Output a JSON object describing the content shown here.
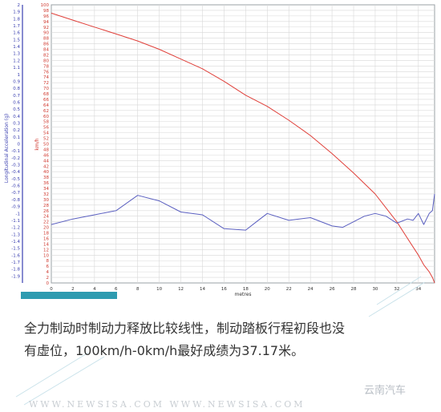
{
  "chart_data": {
    "type": "line",
    "title": "",
    "xlabel": "metres",
    "x_ticks": [
      0,
      2,
      4,
      6,
      8,
      10,
      12,
      14,
      16,
      18,
      20,
      22,
      24,
      26,
      28,
      30,
      32,
      34
    ],
    "xlim": [
      0,
      35.5
    ],
    "left_axis": {
      "label": "Longitudinal Acceleration (g)",
      "ylim": [
        -2,
        2
      ],
      "ticks": [
        "2",
        "1.9",
        "1.8",
        "1.7",
        "1.6",
        "1.5",
        "1.4",
        "1.3",
        "1.2",
        "1.1",
        "1",
        "0.9",
        "0.8",
        "0.7",
        "0.6",
        "0.5",
        "0.4",
        "0.3",
        "0.2",
        "0.1",
        "0",
        "-0.1",
        "-0.2",
        "-0.3",
        "-0.4",
        "-0.5",
        "-0.6",
        "-0.7",
        "-0.8",
        "-0.9",
        "-1",
        "-1.1",
        "-1.2",
        "-1.3",
        "-1.4",
        "-1.5",
        "-1.6",
        "-1.7",
        "-1.8",
        "-1.9"
      ]
    },
    "right_axis": {
      "label": "km/h",
      "ylim": [
        0,
        100
      ],
      "ticks": [
        "100",
        "98",
        "96",
        "94",
        "92",
        "90",
        "88",
        "86",
        "84",
        "82",
        "80",
        "78",
        "76",
        "74",
        "72",
        "70",
        "68",
        "66",
        "64",
        "62",
        "60",
        "58",
        "56",
        "54",
        "52",
        "50",
        "48",
        "46",
        "44",
        "42",
        "40",
        "38",
        "36",
        "34",
        "32",
        "30",
        "28",
        "26",
        "24",
        "22",
        "20",
        "18",
        "16",
        "14",
        "12",
        "10",
        "8",
        "6",
        "4",
        "2",
        "0"
      ]
    },
    "grid": true,
    "series": [
      {
        "axis": "right",
        "color": "#e0403a",
        "x": [
          0,
          2,
          4,
          6,
          8,
          10,
          12,
          14,
          16,
          18,
          20,
          22,
          24,
          26,
          28,
          30,
          32,
          33,
          34,
          34.5,
          35,
          35.3,
          35.5
        ],
        "y": [
          97,
          94.5,
          92,
          89.5,
          87,
          84,
          80.5,
          77,
          72.5,
          67.5,
          63.5,
          58.5,
          53,
          46.5,
          39.5,
          32,
          22,
          16,
          10,
          6.5,
          4,
          2,
          0
        ]
      },
      {
        "axis": "right",
        "color": "#5a5fc0",
        "x": [
          0,
          2,
          4,
          6,
          8,
          10,
          12,
          14,
          16,
          18,
          19,
          20,
          22,
          24,
          26,
          27,
          29,
          30,
          31,
          32,
          33,
          33.5,
          34,
          34.5,
          35,
          35.3,
          35.5
        ],
        "y": [
          21,
          23,
          24.5,
          26,
          31.5,
          29.5,
          25.5,
          24.5,
          19.5,
          19,
          22,
          25,
          22.5,
          23.5,
          20.5,
          20,
          24,
          25,
          24,
          21.5,
          23,
          22.5,
          25,
          21,
          25,
          26,
          32
        ]
      }
    ]
  },
  "caption": {
    "line1": "全力制动时制动力释放比较线性，制动踏板行程初段也没",
    "line2": "有虚位，100km/h-0km/h最好成绩为37.17米。"
  },
  "watermark": "WWW.NEWSISA.COM  WWW.NEWSISA.COM",
  "brand": "云南汽车",
  "colors": {
    "left_axis_text": "#3a3fb0",
    "right_axis_text": "#d03a30",
    "grid": "#d8d8d8",
    "accent_bar": "#2e9bb0"
  }
}
